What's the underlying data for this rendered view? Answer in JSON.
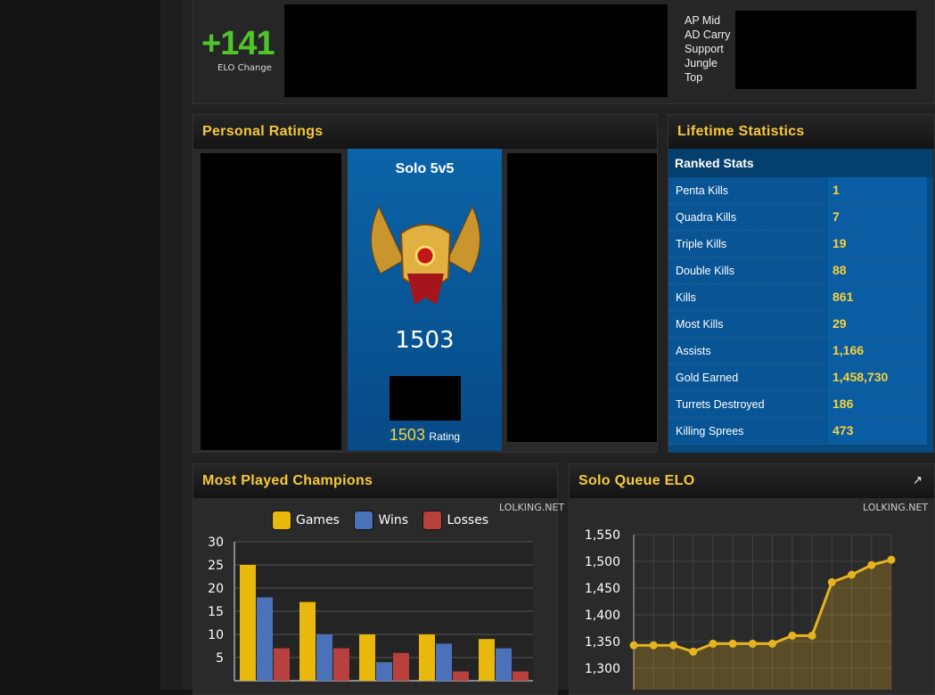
{
  "top": {
    "elo_change": "+141",
    "elo_change_label": "ELO Change",
    "roles": [
      "AP Mid",
      "AD Carry",
      "Support",
      "Jungle",
      "Top"
    ]
  },
  "personal_ratings": {
    "title": "Personal Ratings",
    "queue": "Solo 5v5",
    "rating": "1503",
    "rating_value": "1503",
    "rating_label": "Rating"
  },
  "lifetime": {
    "title": "Lifetime Statistics",
    "section": "Ranked Stats",
    "rows": [
      {
        "label": "Penta Kills",
        "value": "1"
      },
      {
        "label": "Quadra Kills",
        "value": "7"
      },
      {
        "label": "Triple Kills",
        "value": "19"
      },
      {
        "label": "Double Kills",
        "value": "88"
      },
      {
        "label": "Kills",
        "value": "861"
      },
      {
        "label": "Most Kills",
        "value": "29"
      },
      {
        "label": "Assists",
        "value": "1,166"
      },
      {
        "label": "Gold Earned",
        "value": "1,458,730"
      },
      {
        "label": "Turrets Destroyed",
        "value": "186"
      },
      {
        "label": "Killing Sprees",
        "value": "473"
      }
    ]
  },
  "most_played": {
    "title": "Most Played Champions",
    "credit": "LOLKING.NET"
  },
  "solo_queue": {
    "title": "Solo Queue ELO",
    "credit": "LOLKING.NET",
    "icon": "external-link-icon"
  },
  "chart_data": [
    {
      "type": "bar",
      "ylim": [
        0,
        30
      ],
      "yticks": [
        "5",
        "10",
        "15",
        "20",
        "25",
        "30"
      ],
      "legend": "top",
      "series": [
        {
          "name": "Games",
          "color": "#e8b80c",
          "values": [
            25,
            17,
            10,
            10,
            9
          ]
        },
        {
          "name": "Wins",
          "color": "#4b72b8",
          "values": [
            18,
            10,
            4,
            8,
            7
          ]
        },
        {
          "name": "Losses",
          "color": "#b8403f",
          "values": [
            7,
            7,
            6,
            2,
            2
          ]
        }
      ]
    },
    {
      "type": "area",
      "ylim": [
        1300,
        1550
      ],
      "yticks": [
        "1,300",
        "1,350",
        "1,400",
        "1,450",
        "1,500",
        "1,550"
      ],
      "color": "#e6b41e",
      "grid": true,
      "values": [
        1343,
        1343,
        1343,
        1331,
        1346,
        1346,
        1346,
        1346,
        1361,
        1361,
        1461,
        1475,
        1493,
        1503
      ]
    }
  ]
}
